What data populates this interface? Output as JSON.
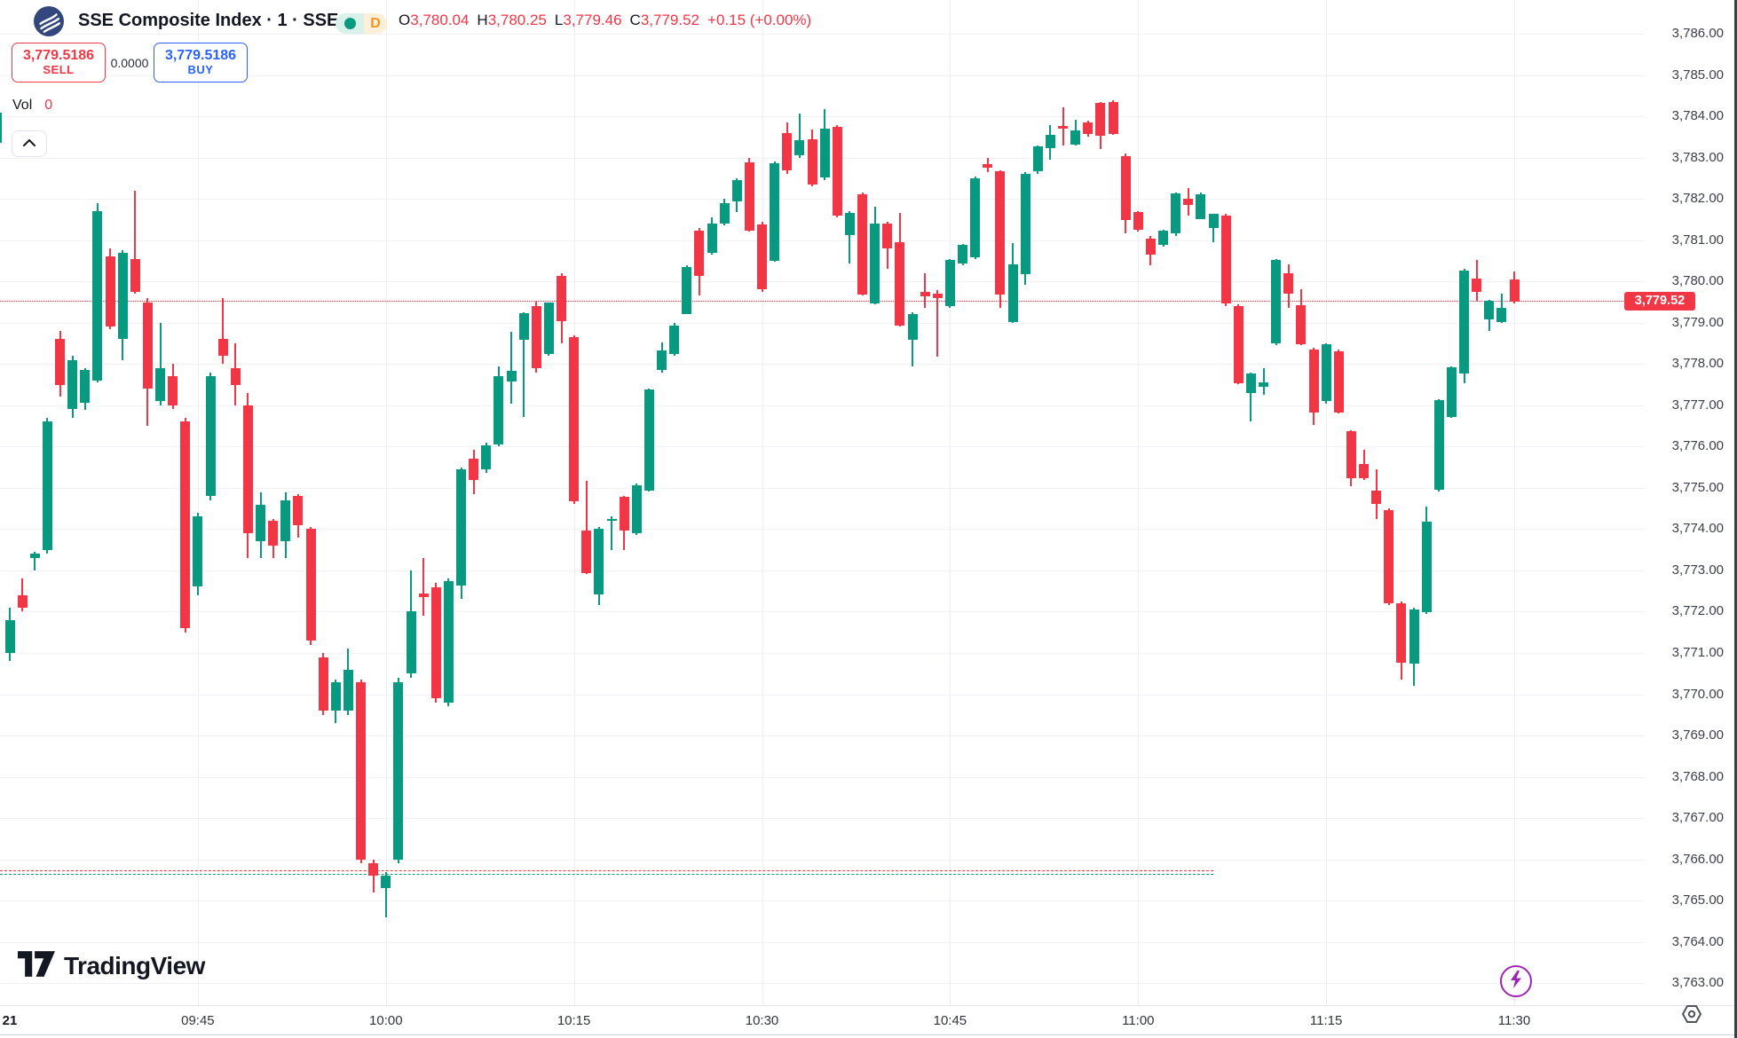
{
  "header": {
    "title": "SSE Composite Index · 1 · SSE",
    "interval_badge": "D",
    "ohlc": {
      "open_label": "O",
      "open": "3,780.04",
      "high_label": "H",
      "high": "3,780.25",
      "low_label": "L",
      "low": "3,779.46",
      "close_label": "C",
      "close": "3,779.52",
      "change": "+0.15 (+0.00%)"
    }
  },
  "trade_panel": {
    "sell_price": "3,779.5186",
    "sell_label": "SELL",
    "spread": "0.0000",
    "buy_price": "3,779.5186",
    "buy_label": "BUY"
  },
  "volume": {
    "label": "Vol",
    "value": "0"
  },
  "watermark": "TradingView",
  "colors": {
    "up": "#089981",
    "down": "#f23645",
    "accent_blue": "#2962ff",
    "flash_purple": "#9c27b0"
  },
  "price_axis": {
    "labels": [
      "3,786.00",
      "3,785.00",
      "3,784.00",
      "3,783.00",
      "3,782.00",
      "3,781.00",
      "3,780.00",
      "3,779.00",
      "3,778.00",
      "3,777.00",
      "3,776.00",
      "3,775.00",
      "3,774.00",
      "3,773.00",
      "3,772.00",
      "3,771.00",
      "3,770.00",
      "3,769.00",
      "3,768.00",
      "3,767.00",
      "3,766.00",
      "3,765.00",
      "3,764.00",
      "3,763.00"
    ],
    "max": 3786,
    "step": 1,
    "current_price_label": "3,779.52"
  },
  "time_axis": {
    "labels": [
      {
        "text": "21",
        "m": 0,
        "em": true
      },
      {
        "text": "09:45",
        "m": 15
      },
      {
        "text": "10:00",
        "m": 30
      },
      {
        "text": "10:15",
        "m": 45
      },
      {
        "text": "10:30",
        "m": 60
      },
      {
        "text": "10:45",
        "m": 75
      },
      {
        "text": "11:00",
        "m": 90
      },
      {
        "text": "11:15",
        "m": 105
      },
      {
        "text": "11:30",
        "m": 120
      }
    ]
  },
  "chart_data": {
    "type": "candlestick",
    "symbol": "SSE Composite Index",
    "interval": "1 minute",
    "session_start": "09:30",
    "session_end": "11:30",
    "y_axis": {
      "min": 3763,
      "max": 3786,
      "tick": 1,
      "grid": true
    },
    "reference_lines": [
      {
        "name": "current-price-line",
        "price": 3779.52,
        "color": "#f23645",
        "style": "dotted",
        "x_end_minute": 130
      },
      {
        "name": "level-line-red",
        "price": 3765.72,
        "color": "#f23645",
        "style": "dashed",
        "x_end_minute": 96
      },
      {
        "name": "level-line-teal",
        "price": 3765.62,
        "color": "#089981",
        "style": "dashed",
        "x_end_minute": 96
      }
    ],
    "candles": [
      [
        "09:29",
        3783.35,
        3784.15,
        3783.3,
        3784.1
      ],
      [
        "09:30",
        3771.0,
        3772.1,
        3770.8,
        3771.8
      ],
      [
        "09:31",
        3772.4,
        3772.8,
        3772.0,
        3772.1
      ],
      [
        "09:32",
        3773.3,
        3773.45,
        3773.0,
        3773.4
      ],
      [
        "09:33",
        3773.5,
        3776.7,
        3773.4,
        3776.6
      ],
      [
        "09:34",
        3778.6,
        3778.8,
        3777.2,
        3777.5
      ],
      [
        "09:35",
        3776.9,
        3778.2,
        3776.7,
        3778.1
      ],
      [
        "09:36",
        3777.05,
        3777.9,
        3776.9,
        3777.85
      ],
      [
        "09:37",
        3777.6,
        3781.9,
        3777.55,
        3781.7
      ],
      [
        "09:38",
        3780.6,
        3780.8,
        3778.85,
        3778.9
      ],
      [
        "09:39",
        3778.6,
        3780.75,
        3778.1,
        3780.7
      ],
      [
        "09:40",
        3780.55,
        3782.2,
        3779.7,
        3779.75
      ],
      [
        "09:41",
        3779.5,
        3779.6,
        3776.5,
        3777.4
      ],
      [
        "09:42",
        3777.1,
        3779.0,
        3777.0,
        3777.9
      ],
      [
        "09:43",
        3777.7,
        3778.0,
        3776.9,
        3777.0
      ],
      [
        "09:44",
        3776.6,
        3776.7,
        3771.5,
        3771.6
      ],
      [
        "09:45",
        3772.6,
        3774.4,
        3772.4,
        3774.3
      ],
      [
        "09:46",
        3774.8,
        3777.8,
        3774.7,
        3777.7
      ],
      [
        "09:47",
        3778.6,
        3779.6,
        3778.0,
        3778.2
      ],
      [
        "09:48",
        3777.9,
        3778.5,
        3777.0,
        3777.5
      ],
      [
        "09:49",
        3777.0,
        3777.3,
        3773.3,
        3773.9
      ],
      [
        "09:50",
        3773.7,
        3774.9,
        3773.3,
        3774.6
      ],
      [
        "09:51",
        3774.2,
        3774.25,
        3773.3,
        3773.6
      ],
      [
        "09:52",
        3773.7,
        3774.9,
        3773.3,
        3774.7
      ],
      [
        "09:53",
        3774.8,
        3774.85,
        3773.8,
        3774.1
      ],
      [
        "09:54",
        3774.0,
        3774.05,
        3771.2,
        3771.3
      ],
      [
        "09:55",
        3770.9,
        3771.0,
        3769.5,
        3769.6
      ],
      [
        "09:56",
        3769.6,
        3770.35,
        3769.3,
        3770.3
      ],
      [
        "09:57",
        3769.6,
        3771.1,
        3769.5,
        3770.6
      ],
      [
        "09:58",
        3770.3,
        3770.35,
        3765.9,
        3766.0
      ],
      [
        "09:59",
        3765.9,
        3766.0,
        3765.2,
        3765.6
      ],
      [
        "10:00",
        3765.3,
        3765.7,
        3764.6,
        3765.6
      ],
      [
        "10:01",
        3766.0,
        3770.4,
        3765.9,
        3770.3
      ],
      [
        "10:02",
        3770.5,
        3773.0,
        3770.4,
        3772.0
      ],
      [
        "10:03",
        3772.45,
        3773.3,
        3771.9,
        3772.35
      ],
      [
        "10:04",
        3772.6,
        3772.7,
        3769.8,
        3769.9
      ],
      [
        "10:05",
        3769.8,
        3772.8,
        3769.7,
        3772.75
      ],
      [
        "10:06",
        3772.63,
        3775.5,
        3772.3,
        3775.46
      ],
      [
        "10:07",
        3775.7,
        3775.92,
        3774.85,
        3775.2
      ],
      [
        "10:08",
        3775.44,
        3776.1,
        3775.36,
        3776.02
      ],
      [
        "10:09",
        3776.05,
        3777.94,
        3776.0,
        3777.7
      ],
      [
        "10:10",
        3777.57,
        3778.79,
        3777.03,
        3777.83
      ],
      [
        "10:11",
        3778.58,
        3779.25,
        3776.71,
        3779.23
      ],
      [
        "10:12",
        3779.4,
        3779.51,
        3777.8,
        3777.89
      ],
      [
        "10:13",
        3778.24,
        3779.5,
        3778.2,
        3779.49
      ],
      [
        "10:14",
        3780.13,
        3780.2,
        3778.5,
        3779.04
      ],
      [
        "10:15",
        3778.65,
        3778.7,
        3774.6,
        3774.67
      ],
      [
        "10:16",
        3773.96,
        3775.16,
        3772.9,
        3772.93
      ],
      [
        "10:17",
        3772.41,
        3774.05,
        3772.15,
        3774.0
      ],
      [
        "10:18",
        3774.2,
        3774.3,
        3773.5,
        3774.25
      ],
      [
        "10:19",
        3774.78,
        3774.8,
        3773.49,
        3773.96
      ],
      [
        "10:20",
        3773.9,
        3775.1,
        3773.85,
        3775.06
      ],
      [
        "10:21",
        3774.93,
        3777.4,
        3774.9,
        3777.38
      ],
      [
        "10:22",
        3777.85,
        3778.52,
        3777.8,
        3778.32
      ],
      [
        "10:23",
        3778.24,
        3779.0,
        3778.2,
        3778.93
      ],
      [
        "10:24",
        3779.22,
        3780.4,
        3779.2,
        3780.35
      ],
      [
        "10:25",
        3781.24,
        3781.3,
        3779.67,
        3780.13
      ],
      [
        "10:26",
        3780.69,
        3781.55,
        3780.65,
        3781.4
      ],
      [
        "10:27",
        3781.4,
        3782.0,
        3781.35,
        3781.9
      ],
      [
        "10:28",
        3781.94,
        3782.5,
        3781.68,
        3782.46
      ],
      [
        "10:29",
        3782.89,
        3783.0,
        3781.2,
        3781.23
      ],
      [
        "10:30",
        3781.38,
        3781.45,
        3779.75,
        3779.82
      ],
      [
        "10:31",
        3780.5,
        3782.9,
        3780.47,
        3782.87
      ],
      [
        "10:32",
        3783.59,
        3783.85,
        3782.6,
        3782.69
      ],
      [
        "10:33",
        3783.05,
        3784.06,
        3783.0,
        3783.42
      ],
      [
        "10:34",
        3783.44,
        3783.68,
        3782.3,
        3782.34
      ],
      [
        "10:35",
        3782.52,
        3784.17,
        3782.45,
        3783.7
      ],
      [
        "10:36",
        3783.74,
        3783.8,
        3781.55,
        3781.59
      ],
      [
        "10:37",
        3781.12,
        3781.7,
        3780.43,
        3781.66
      ],
      [
        "10:38",
        3782.11,
        3782.15,
        3779.65,
        3779.68
      ],
      [
        "10:39",
        3779.47,
        3781.81,
        3779.45,
        3781.4
      ],
      [
        "10:40",
        3781.4,
        3781.45,
        3780.3,
        3780.8
      ],
      [
        "10:41",
        3780.95,
        3781.66,
        3778.9,
        3778.93
      ],
      [
        "10:42",
        3778.58,
        3779.25,
        3777.94,
        3779.22
      ],
      [
        "10:43",
        3779.75,
        3780.2,
        3779.36,
        3779.65
      ],
      [
        "10:44",
        3779.7,
        3779.8,
        3778.18,
        3779.6
      ],
      [
        "10:45",
        3779.4,
        3780.55,
        3779.35,
        3780.52
      ],
      [
        "10:46",
        3780.43,
        3780.9,
        3780.4,
        3780.88
      ],
      [
        "10:47",
        3780.58,
        3782.55,
        3780.55,
        3782.5
      ],
      [
        "10:48",
        3782.85,
        3783.0,
        3782.65,
        3782.75
      ],
      [
        "10:49",
        3782.67,
        3782.7,
        3779.36,
        3779.68
      ],
      [
        "10:50",
        3779.02,
        3780.93,
        3779.0,
        3780.41
      ],
      [
        "10:51",
        3780.17,
        3782.65,
        3779.92,
        3782.6
      ],
      [
        "10:52",
        3782.67,
        3783.3,
        3782.6,
        3783.27
      ],
      [
        "10:53",
        3783.23,
        3783.79,
        3782.95,
        3783.55
      ],
      [
        "10:54",
        3783.77,
        3784.21,
        3783.29,
        3783.7
      ],
      [
        "10:55",
        3783.31,
        3783.91,
        3783.3,
        3783.66
      ],
      [
        "10:56",
        3783.85,
        3783.9,
        3783.5,
        3783.57
      ],
      [
        "10:57",
        3784.32,
        3784.35,
        3783.21,
        3783.53
      ],
      [
        "10:58",
        3784.35,
        3784.4,
        3783.55,
        3783.57
      ],
      [
        "10:59",
        3783.03,
        3783.1,
        3781.16,
        3781.48
      ],
      [
        "11:00",
        3781.68,
        3781.7,
        3781.2,
        3781.25
      ],
      [
        "11:01",
        3781.03,
        3781.1,
        3780.39,
        3780.65
      ],
      [
        "11:02",
        3780.88,
        3781.25,
        3780.85,
        3781.23
      ],
      [
        "11:03",
        3781.16,
        3782.15,
        3781.1,
        3782.13
      ],
      [
        "11:04",
        3782.0,
        3782.26,
        3781.59,
        3781.85
      ],
      [
        "11:05",
        3781.51,
        3782.15,
        3781.5,
        3782.11
      ],
      [
        "11:06",
        3781.29,
        3781.65,
        3780.95,
        3781.64
      ],
      [
        "11:07",
        3781.6,
        3781.65,
        3779.4,
        3779.46
      ],
      [
        "11:08",
        3779.4,
        3779.45,
        3777.51,
        3777.53
      ],
      [
        "11:09",
        3777.3,
        3777.8,
        3776.61,
        3777.77
      ],
      [
        "11:10",
        3777.45,
        3777.9,
        3777.26,
        3777.55
      ],
      [
        "11:11",
        3778.5,
        3780.55,
        3778.45,
        3780.52
      ],
      [
        "11:12",
        3780.2,
        3780.41,
        3779.36,
        3779.71
      ],
      [
        "11:13",
        3779.42,
        3779.82,
        3778.45,
        3778.48
      ],
      [
        "11:14",
        3778.35,
        3778.4,
        3776.52,
        3776.82
      ],
      [
        "11:15",
        3777.11,
        3778.5,
        3777.05,
        3778.48
      ],
      [
        "11:16",
        3778.31,
        3778.35,
        3776.8,
        3776.82
      ],
      [
        "11:17",
        3776.37,
        3776.4,
        3775.03,
        3775.23
      ],
      [
        "11:18",
        3775.57,
        3775.92,
        3775.2,
        3775.23
      ],
      [
        "11:19",
        3774.93,
        3775.44,
        3774.24,
        3774.61
      ],
      [
        "11:20",
        3774.46,
        3774.5,
        3772.15,
        3772.2
      ],
      [
        "11:21",
        3772.2,
        3772.25,
        3770.35,
        3770.76
      ],
      [
        "11:22",
        3770.74,
        3772.1,
        3770.21,
        3772.05
      ],
      [
        "11:23",
        3771.98,
        3774.54,
        3771.95,
        3774.18
      ],
      [
        "11:24",
        3774.95,
        3777.15,
        3774.9,
        3777.13
      ],
      [
        "11:25",
        3776.71,
        3777.95,
        3776.7,
        3777.92
      ],
      [
        "11:26",
        3777.77,
        3780.3,
        3777.53,
        3780.26
      ],
      [
        "11:27",
        3780.07,
        3780.52,
        3779.53,
        3779.74
      ],
      [
        "11:28",
        3779.08,
        3779.55,
        3778.8,
        3779.53
      ],
      [
        "11:29",
        3779.02,
        3779.71,
        3779.0,
        3779.36
      ],
      [
        "11:30",
        3780.04,
        3780.25,
        3779.46,
        3779.52
      ]
    ]
  }
}
